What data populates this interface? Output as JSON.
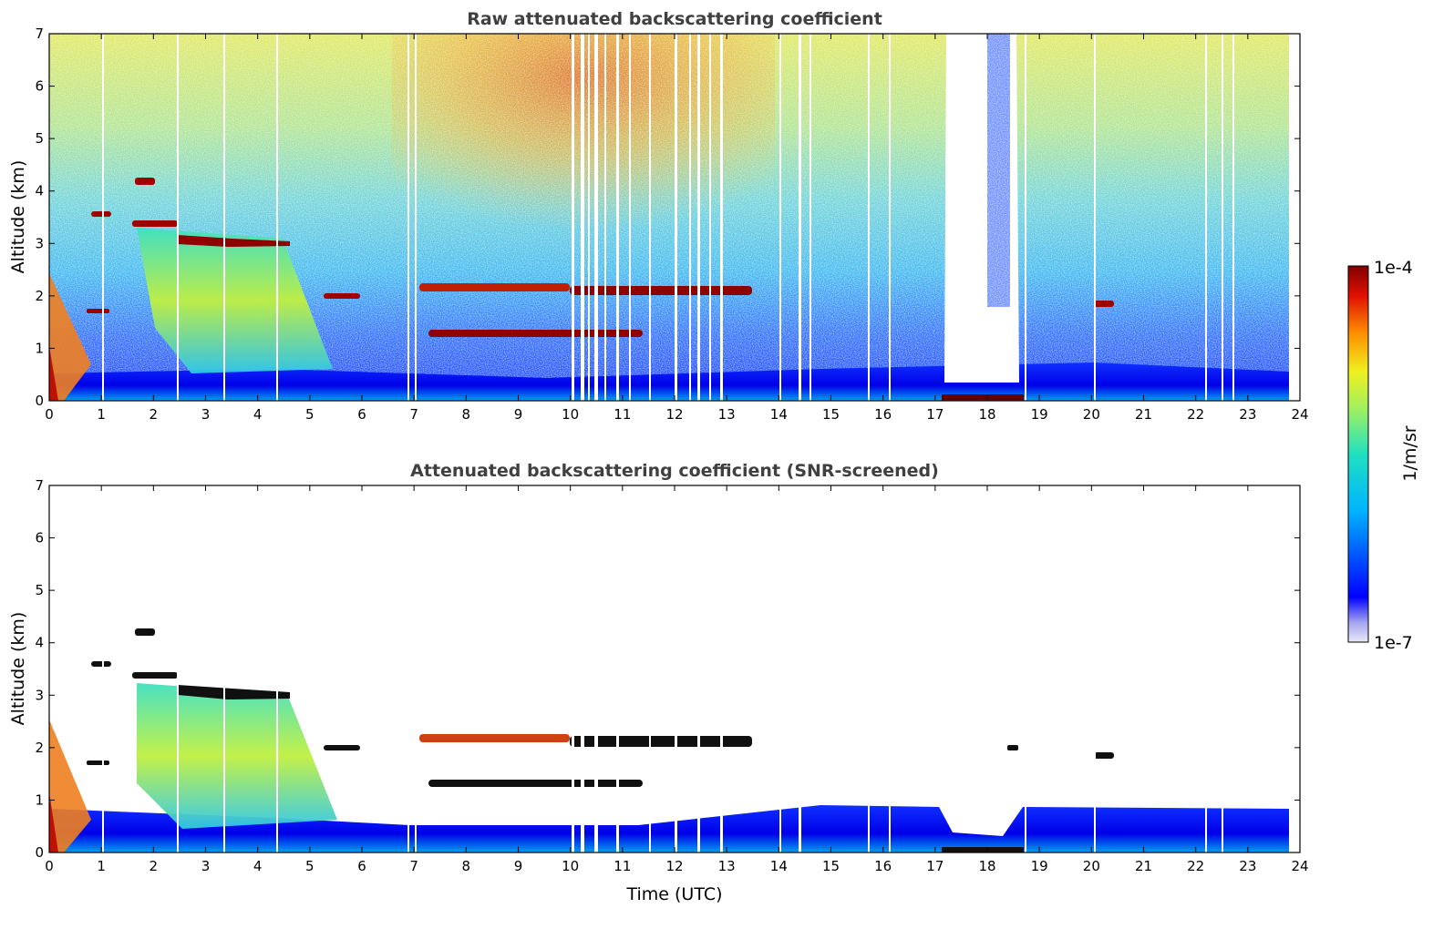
{
  "chart_data": [
    {
      "type": "heatmap",
      "title": "Raw attenuated backscattering coefficient",
      "xlabel": "",
      "ylabel": "Altitude (km)",
      "xlim": [
        0,
        24
      ],
      "ylim": [
        0,
        7
      ],
      "xticks": [
        0,
        1,
        2,
        3,
        4,
        5,
        6,
        7,
        8,
        9,
        10,
        11,
        12,
        13,
        14,
        15,
        16,
        17,
        18,
        19,
        20,
        21,
        22,
        23,
        24
      ],
      "yticks": [
        0,
        1,
        2,
        3,
        4,
        5,
        6,
        7
      ],
      "colormap": "jet",
      "features": [
        {
          "name": "boundary layer",
          "t": [
            0,
            23.8
          ],
          "alt": [
            0,
            0.5
          ],
          "level": "low"
        },
        {
          "name": "aerosol plume",
          "t": [
            2.5,
            5.4
          ],
          "alt": [
            0.6,
            3.0
          ],
          "level": "mid"
        },
        {
          "name": "cloud layer",
          "t": [
            2.3,
            4.6
          ],
          "alt": [
            2.9,
            3.15
          ],
          "level": "high"
        },
        {
          "name": "cloud layer",
          "t": [
            10,
            13.5
          ],
          "alt": [
            1.9,
            2.2
          ],
          "level": "high"
        },
        {
          "name": "cloud layer",
          "t": [
            7.3,
            11.4
          ],
          "alt": [
            1.15,
            1.3
          ],
          "level": "high"
        },
        {
          "name": "data gap",
          "t": [
            17.3,
            18.5
          ],
          "alt": [
            0.3,
            7
          ],
          "level": "none"
        }
      ]
    },
    {
      "type": "heatmap",
      "title": "Attenuated backscattering coefficient (SNR-screened)",
      "xlabel": "Time (UTC)",
      "ylabel": "Altitude (km)",
      "xlim": [
        0,
        24
      ],
      "ylim": [
        0,
        7
      ],
      "xticks": [
        0,
        1,
        2,
        3,
        4,
        5,
        6,
        7,
        8,
        9,
        10,
        11,
        12,
        13,
        14,
        15,
        16,
        17,
        18,
        19,
        20,
        21,
        22,
        23,
        24
      ],
      "yticks": [
        0,
        1,
        2,
        3,
        4,
        5,
        6,
        7
      ],
      "colormap": "jet",
      "features": [
        {
          "name": "boundary layer",
          "t": [
            0,
            23.8
          ],
          "alt": [
            0,
            0.85
          ],
          "level": "low"
        },
        {
          "name": "aerosol plume",
          "t": [
            1.6,
            5.4
          ],
          "alt": [
            0.6,
            3.3
          ],
          "level": "mid"
        },
        {
          "name": "cloud layer",
          "t": [
            2.3,
            4.6
          ],
          "alt": [
            2.9,
            3.15
          ],
          "level": "black"
        },
        {
          "name": "cloud layer",
          "t": [
            7.3,
            13.5
          ],
          "alt": [
            1.9,
            2.2
          ],
          "level": "high"
        },
        {
          "name": "data gap",
          "t": [
            17.3,
            18.5
          ],
          "alt": [
            0.3,
            7
          ],
          "level": "none"
        }
      ]
    }
  ],
  "colorbar": {
    "label": "1/m/sr",
    "max_label": "1e-4",
    "min_label": "1e-7"
  }
}
